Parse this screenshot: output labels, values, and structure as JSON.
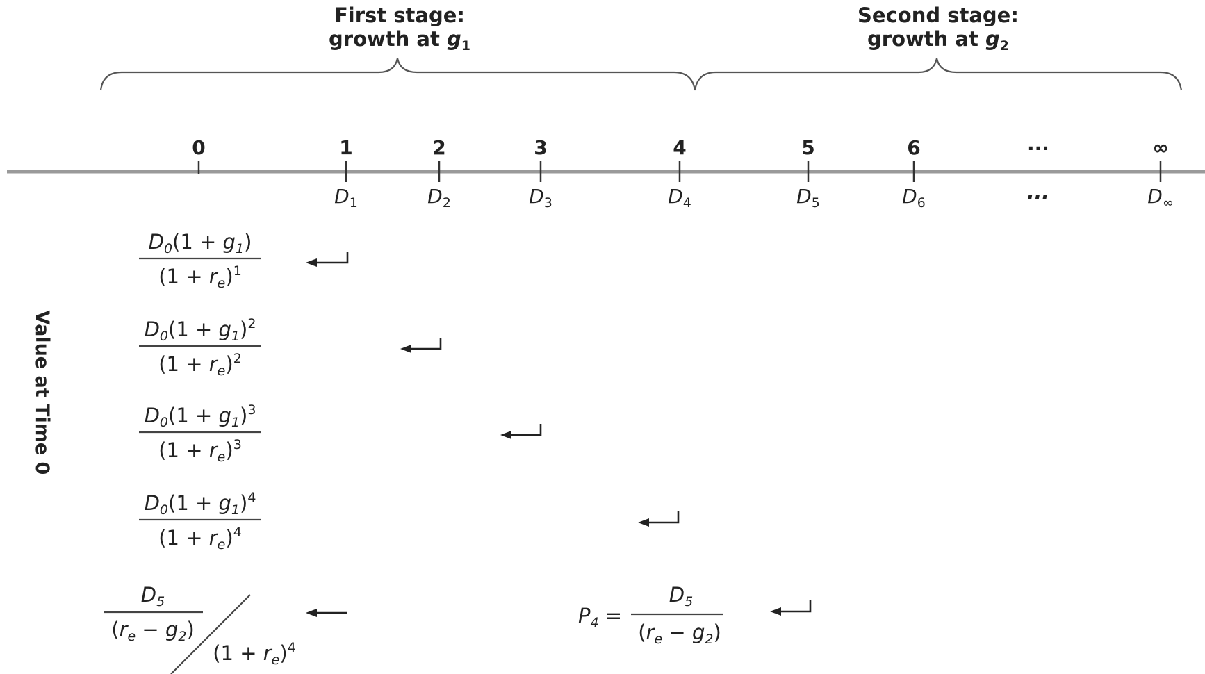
{
  "stages": [
    {
      "line1": "First stage:",
      "line2_prefix": "growth at ",
      "var": "g",
      "sub": "1"
    },
    {
      "line1": "Second stage:",
      "line2_prefix": "growth at ",
      "var": "g",
      "sub": "2"
    }
  ],
  "ticks": [
    "0",
    "1",
    "2",
    "3",
    "4",
    "5",
    "6",
    "...",
    "∞"
  ],
  "dividends": [
    {
      "var": "D",
      "sub": "1"
    },
    {
      "var": "D",
      "sub": "2"
    },
    {
      "var": "D",
      "sub": "3"
    },
    {
      "var": "D",
      "sub": "4"
    },
    {
      "var": "D",
      "sub": "5"
    },
    {
      "var": "D",
      "sub": "6"
    },
    {
      "var": "...",
      "sub": ""
    },
    {
      "var": "D",
      "sub": "∞"
    }
  ],
  "side_label": "Value at Time 0",
  "pv_terms": [
    {
      "num_a": "D",
      "num_a_sub": "0",
      "num_b": "(1 + ",
      "num_g": "g",
      "num_g_sub": "1",
      "num_close": ")",
      "num_exp": "",
      "den_open": "(1 + ",
      "den_r": "r",
      "den_r_sub": "e",
      "den_close": ")",
      "den_exp": "1"
    },
    {
      "num_a": "D",
      "num_a_sub": "0",
      "num_b": "(1 + ",
      "num_g": "g",
      "num_g_sub": "1",
      "num_close": ")",
      "num_exp": "2",
      "den_open": "(1 + ",
      "den_r": "r",
      "den_r_sub": "e",
      "den_close": ")",
      "den_exp": "2"
    },
    {
      "num_a": "D",
      "num_a_sub": "0",
      "num_b": "(1 + ",
      "num_g": "g",
      "num_g_sub": "1",
      "num_close": ")",
      "num_exp": "3",
      "den_open": "(1 + ",
      "den_r": "r",
      "den_r_sub": "e",
      "den_close": ")",
      "den_exp": "3"
    },
    {
      "num_a": "D",
      "num_a_sub": "0",
      "num_b": "(1 + ",
      "num_g": "g",
      "num_g_sub": "1",
      "num_close": ")",
      "num_exp": "4",
      "den_open": "(1 + ",
      "den_r": "r",
      "den_r_sub": "e",
      "den_close": ")",
      "den_exp": "4"
    }
  ],
  "terminal": {
    "num": "D",
    "num_sub": "5",
    "den_open": "(",
    "den_r": "r",
    "den_r_sub": "e",
    "den_minus": " − ",
    "den_g": "g",
    "den_g_sub": "2",
    "den_close": ")",
    "outer_den_open": "(1 + ",
    "outer_den_r": "r",
    "outer_den_r_sub": "e",
    "outer_den_close": ")",
    "outer_den_exp": "4"
  },
  "price": {
    "lhs": "P",
    "lhs_sub": "4",
    "eq": " =",
    "num": "D",
    "num_sub": "5",
    "den_open": "(",
    "den_r": "r",
    "den_r_sub": "e",
    "den_minus": " − ",
    "den_g": "g",
    "den_g_sub": "2",
    "den_close": ")"
  }
}
